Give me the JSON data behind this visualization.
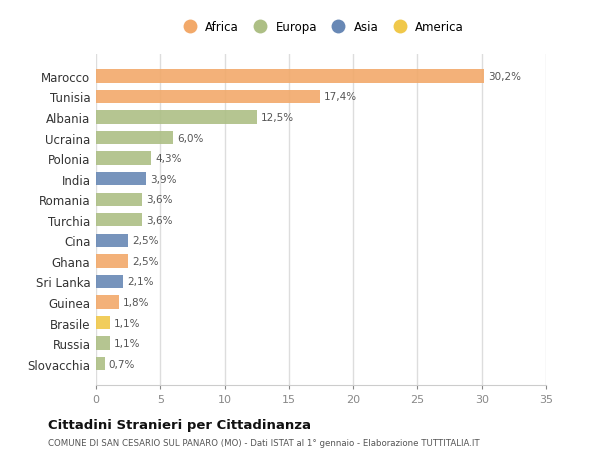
{
  "countries": [
    "Marocco",
    "Tunisia",
    "Albania",
    "Ucraina",
    "Polonia",
    "India",
    "Romania",
    "Turchia",
    "Cina",
    "Ghana",
    "Sri Lanka",
    "Guinea",
    "Brasile",
    "Russia",
    "Slovacchia"
  ],
  "values": [
    30.2,
    17.4,
    12.5,
    6.0,
    4.3,
    3.9,
    3.6,
    3.6,
    2.5,
    2.5,
    2.1,
    1.8,
    1.1,
    1.1,
    0.7
  ],
  "labels": [
    "30,2%",
    "17,4%",
    "12,5%",
    "6,0%",
    "4,3%",
    "3,9%",
    "3,6%",
    "3,6%",
    "2,5%",
    "2,5%",
    "2,1%",
    "1,8%",
    "1,1%",
    "1,1%",
    "0,7%"
  ],
  "colors": [
    "#F2A96A",
    "#F2A96A",
    "#ADBF85",
    "#ADBF85",
    "#ADBF85",
    "#6888B5",
    "#ADBF85",
    "#ADBF85",
    "#6888B5",
    "#F2A96A",
    "#6888B5",
    "#F2A96A",
    "#F0C84A",
    "#ADBF85",
    "#ADBF85"
  ],
  "legend_labels": [
    "Africa",
    "Europa",
    "Asia",
    "America"
  ],
  "legend_colors": [
    "#F2A96A",
    "#ADBF85",
    "#6888B5",
    "#F0C84A"
  ],
  "xlim": [
    0,
    35
  ],
  "xticks": [
    0,
    5,
    10,
    15,
    20,
    25,
    30,
    35
  ],
  "title": "Cittadini Stranieri per Cittadinanza",
  "subtitle": "COMUNE DI SAN CESARIO SUL PANARO (MO) - Dati ISTAT al 1° gennaio - Elaborazione TUTTITALIA.IT",
  "bg_color": "#ffffff",
  "bar_height": 0.65
}
